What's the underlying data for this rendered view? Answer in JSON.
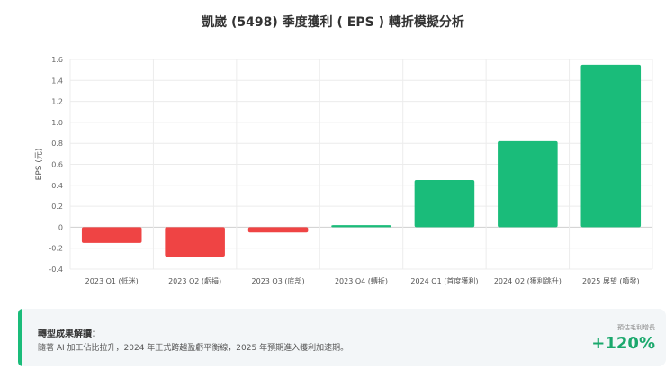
{
  "chart_data": {
    "type": "bar",
    "title": "凱崴 (5498) 季度獲利 ( EPS ) 轉折模擬分析",
    "ylabel": "EPS (元)",
    "ylim": [
      -0.4,
      1.6
    ],
    "yticks": [
      "1.6",
      "1.4",
      "1.2",
      "1.0",
      "0.8",
      "0.6",
      "0.4",
      "0.2",
      "0",
      "-0.2",
      "-0.4"
    ],
    "categories": [
      "2023 Q1 (低迷)",
      "2023 Q2 (虧損)",
      "2023 Q3 (底部)",
      "2023 Q4 (轉折)",
      "2024 Q1 (首度獲利)",
      "2024 Q2 (獲利跳升)",
      "2025 展望 (噴發)"
    ],
    "values": [
      -0.15,
      -0.28,
      -0.05,
      0.02,
      0.45,
      0.82,
      1.55
    ],
    "colors": {
      "negative": "#ef4444",
      "positive": "#1abc7a"
    },
    "grid": true
  },
  "summary": {
    "title": "轉型成果解讀：",
    "text": "隨著 AI 加工佔比拉升，2024 年正式跨越盈虧平衡線，2025 年預期進入獲利加速期。",
    "badge_label": "預估毛利增長",
    "badge_value": "+120%"
  }
}
